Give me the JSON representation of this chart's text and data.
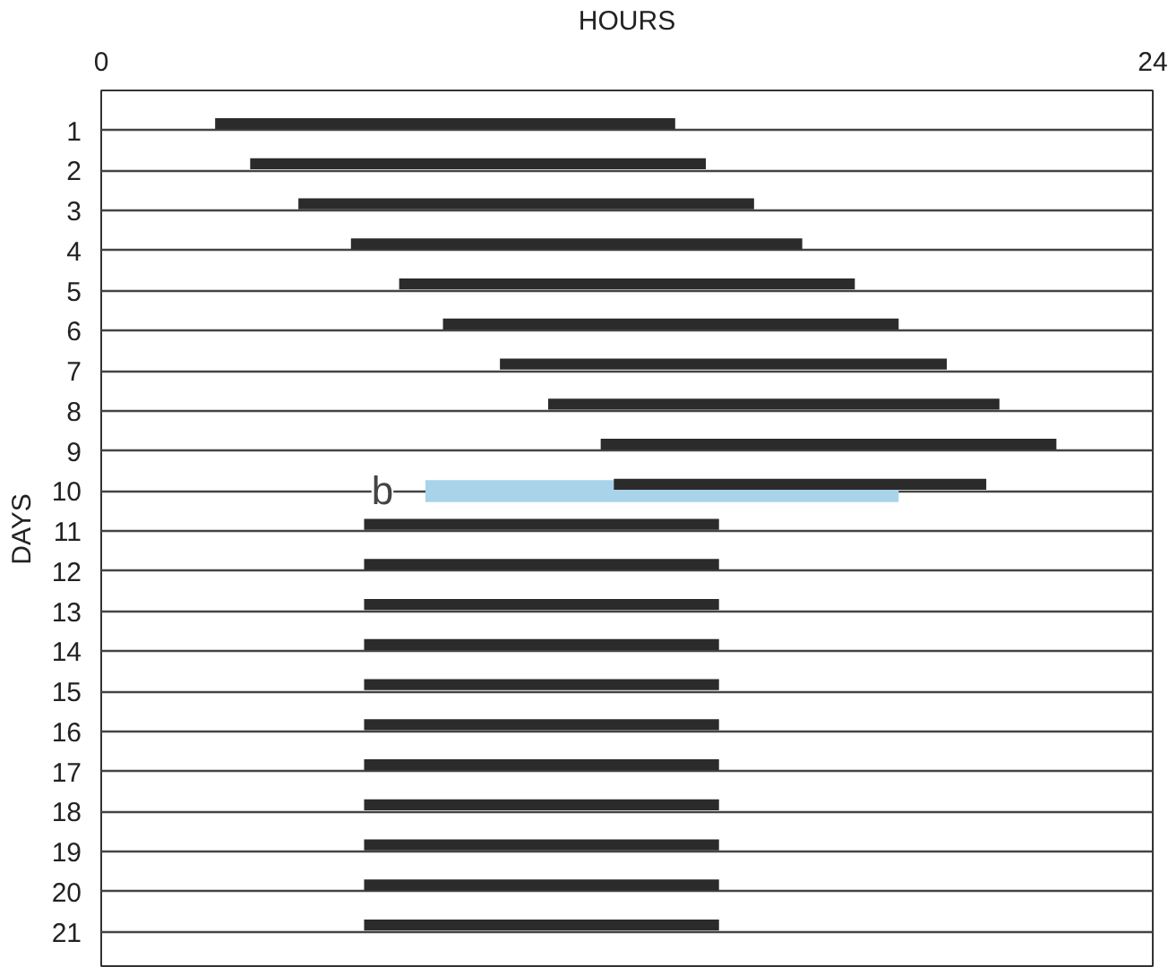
{
  "chart_data": {
    "type": "bar",
    "orientation": "horizontal",
    "xlabel": "HOURS",
    "ylabel": "DAYS",
    "categories": [
      "1",
      "2",
      "3",
      "4",
      "5",
      "6",
      "7",
      "8",
      "9",
      "10",
      "11",
      "12",
      "13",
      "14",
      "15",
      "16",
      "17",
      "18",
      "19",
      "20",
      "21"
    ],
    "xlim": [
      0,
      24
    ],
    "xticks": [
      0,
      24
    ],
    "grid": "y",
    "series": [
      {
        "color": "#a9d3ea",
        "values": [
          null,
          null,
          null,
          null,
          null,
          null,
          null,
          null,
          null,
          10.8,
          null,
          null,
          null,
          null,
          null,
          null,
          null,
          null,
          null,
          null,
          null
        ],
        "base": [
          null,
          null,
          null,
          null,
          null,
          null,
          null,
          null,
          null,
          7.4,
          null,
          null,
          null,
          null,
          null,
          null,
          null,
          null,
          null,
          null,
          null
        ]
      },
      {
        "color": "#2b2b2b",
        "values": [
          10.5,
          10.4,
          10.4,
          10.3,
          10.4,
          10.4,
          10.2,
          10.3,
          10.4,
          8.5,
          8.1,
          8.1,
          8.1,
          8.1,
          8.1,
          8.1,
          8.1,
          8.1,
          8.1,
          8.1,
          8.1
        ],
        "base": [
          2.6,
          3.4,
          4.5,
          5.7,
          6.8,
          7.8,
          9.1,
          10.2,
          11.4,
          11.7,
          6.0,
          6.0,
          6.0,
          6.0,
          6.0,
          6.0,
          6.0,
          6.0,
          6.0,
          6.0,
          6.0
        ]
      }
    ],
    "annotations": [
      "b"
    ]
  }
}
